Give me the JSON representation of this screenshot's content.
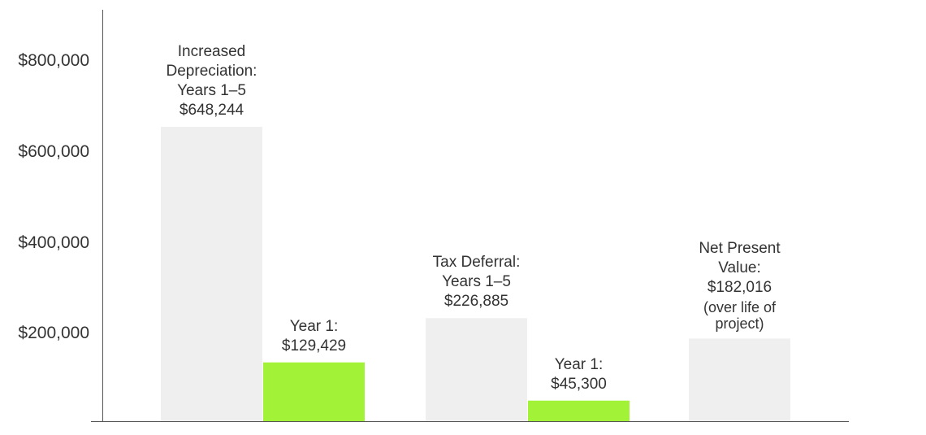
{
  "chart_data": {
    "type": "bar",
    "title": "",
    "xlabel": "",
    "ylabel": "",
    "ylim": [
      0,
      900000
    ],
    "grid": false,
    "yticks": [
      {
        "value": 200000,
        "label": "$200,000"
      },
      {
        "value": 400000,
        "label": "$400,000"
      },
      {
        "value": 600000,
        "label": "$600,000"
      },
      {
        "value": 800000,
        "label": "$800,000"
      }
    ],
    "bars": [
      {
        "value": 648244,
        "color": "#efefef",
        "label_lines": [
          "Increased",
          "Depreciation:",
          "Years 1–5",
          "$648,244"
        ],
        "note": ""
      },
      {
        "value": 129429,
        "color": "#a2f238",
        "label_lines": [
          "Year 1:",
          "$129,429"
        ],
        "note": ""
      },
      {
        "value": 226885,
        "color": "#efefef",
        "label_lines": [
          "Tax Deferral:",
          "Years 1–5",
          "$226,885"
        ],
        "note": ""
      },
      {
        "value": 45300,
        "color": "#a2f238",
        "label_lines": [
          "Year 1:",
          "$45,300"
        ],
        "note": ""
      },
      {
        "value": 182016,
        "color": "#efefef",
        "label_lines": [
          "Net Present",
          "Value:",
          "$182,016"
        ],
        "note": "(over life of project)"
      }
    ]
  }
}
